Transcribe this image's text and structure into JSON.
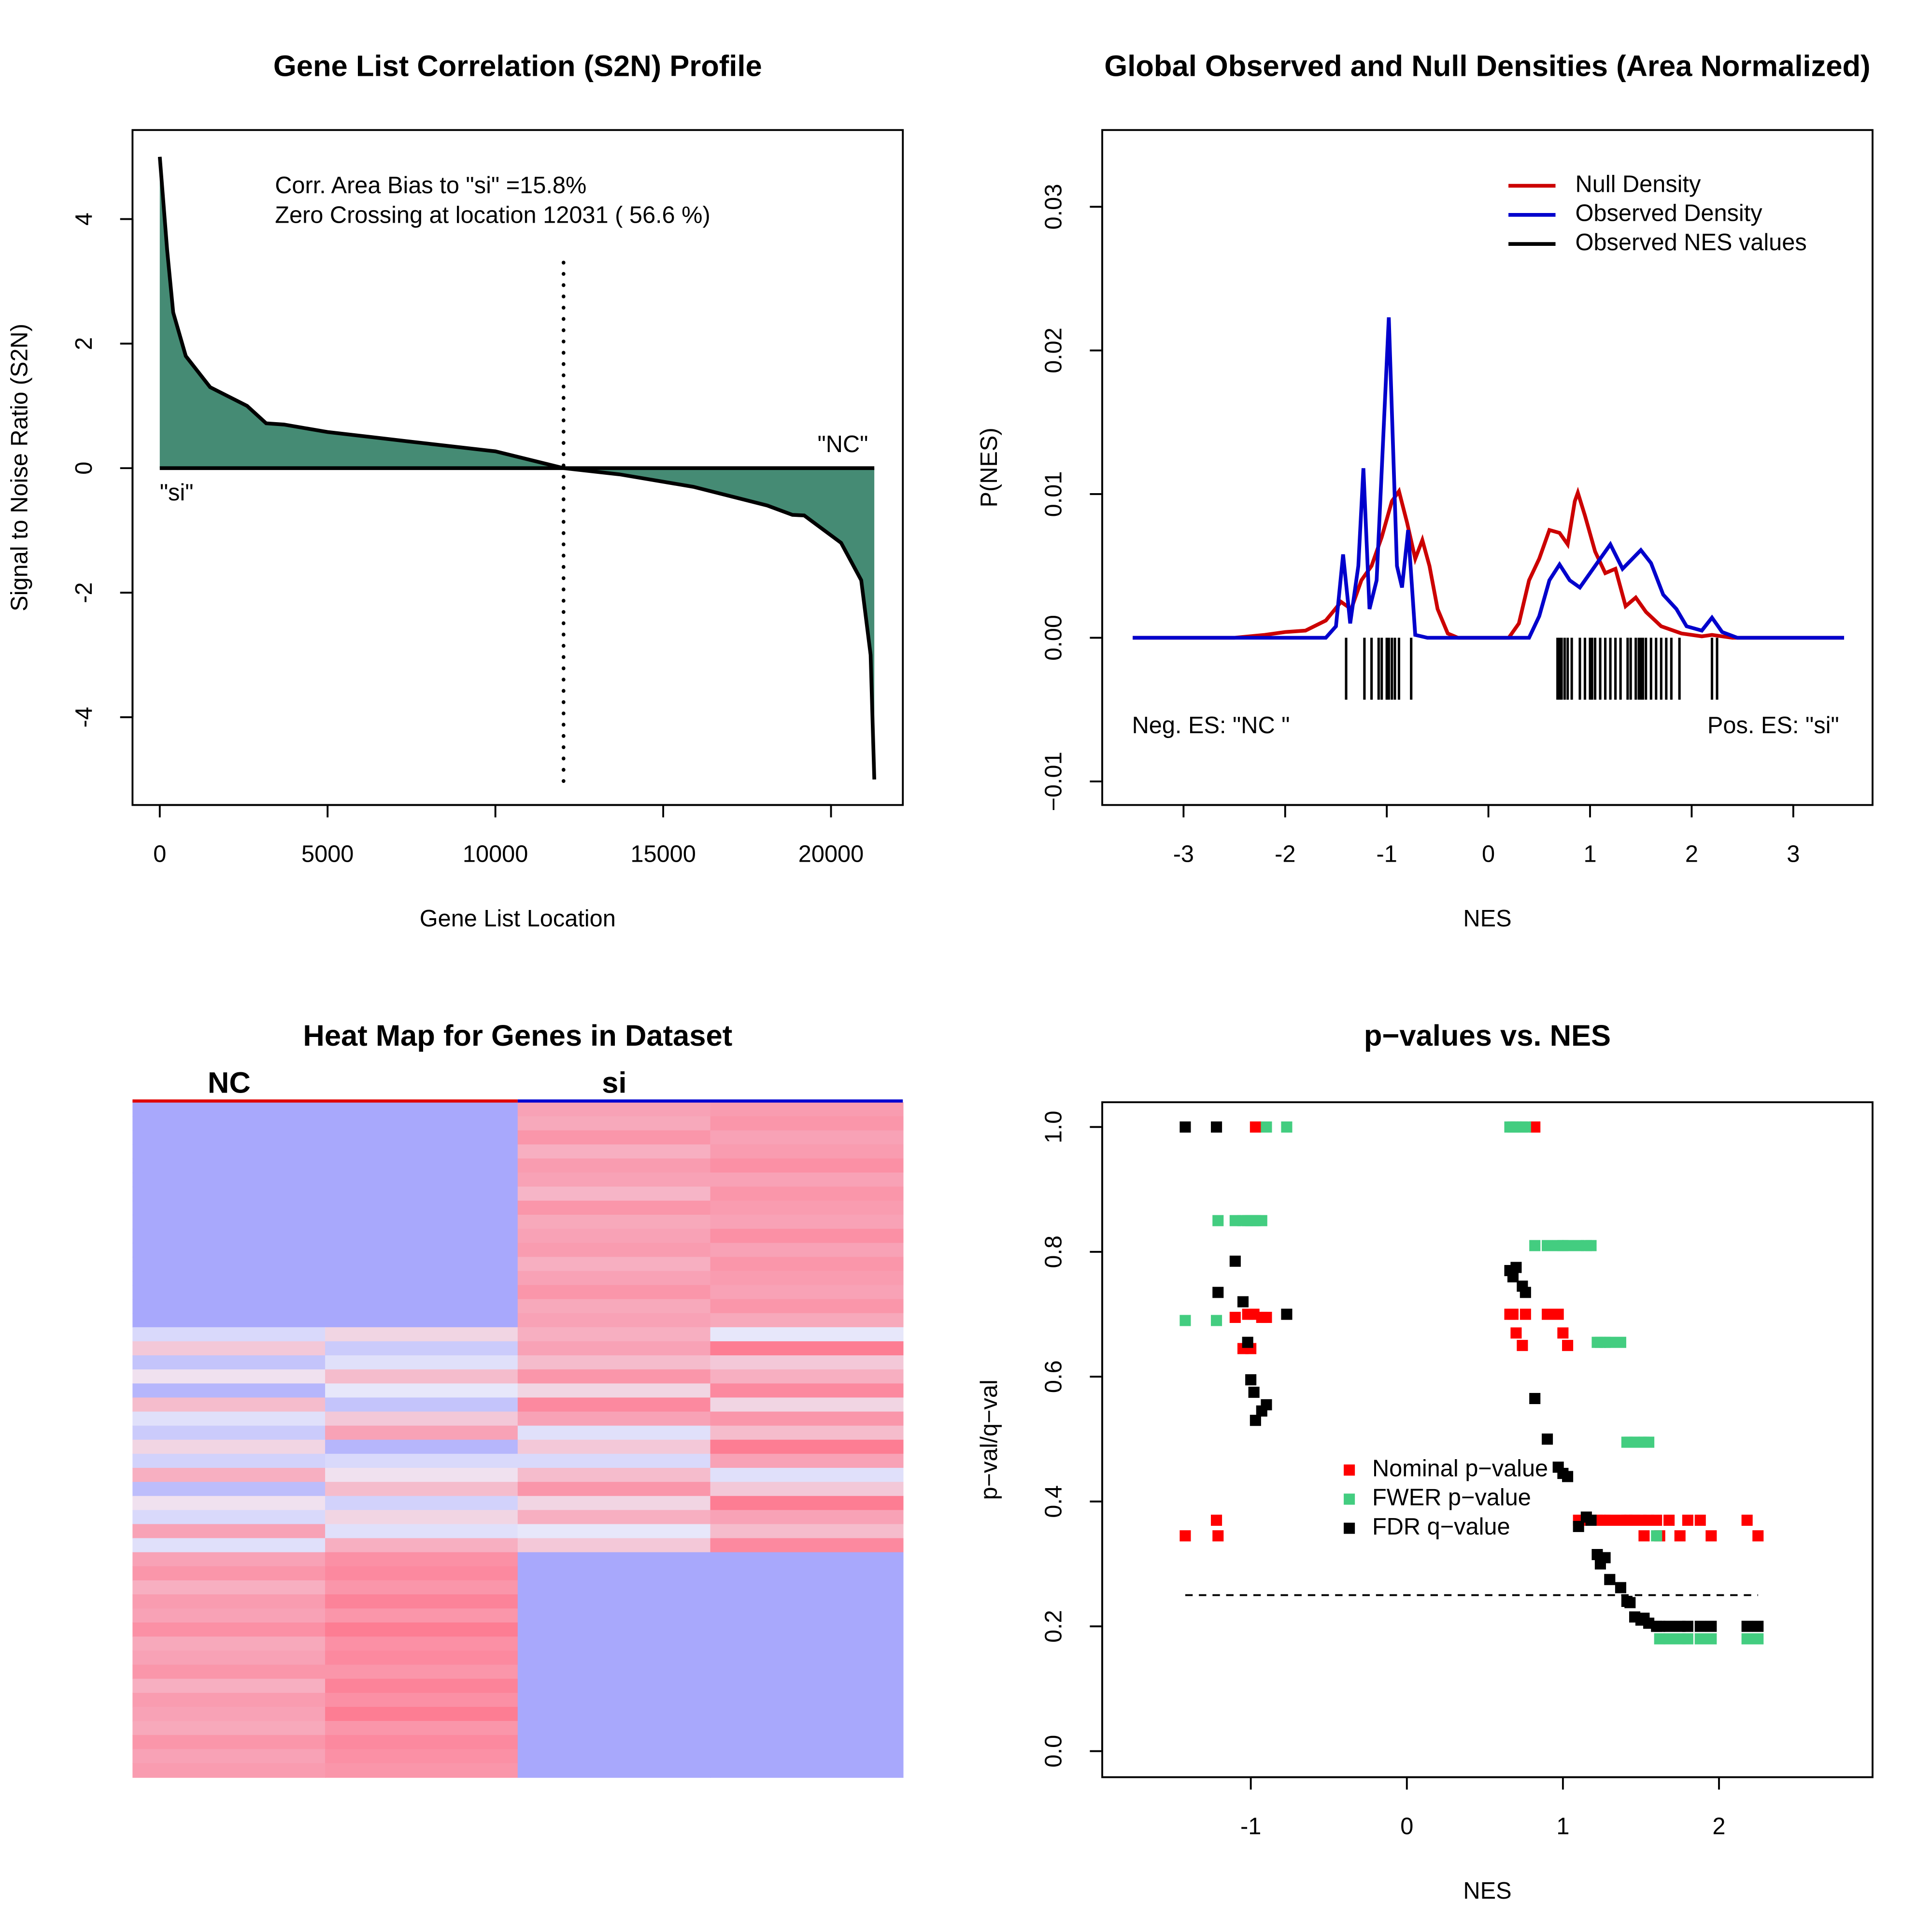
{
  "chart_data": [
    {
      "type": "area",
      "title": "Gene List Correlation (S2N) Profile",
      "x_label": "Gene List Location",
      "y_label": "Signal to Noise Ratio (S2N)",
      "x": [
        0,
        220,
        400,
        775,
        1500,
        2600,
        3170,
        3700,
        5000,
        7400,
        10000,
        12031,
        13700,
        15900,
        18100,
        18850,
        19200,
        20300,
        20900,
        21180,
        21290
      ],
      "values": [
        5.0,
        3.5,
        2.5,
        1.8,
        1.3,
        1.0,
        0.72,
        0.7,
        0.58,
        0.43,
        0.27,
        0,
        -0.1,
        -0.3,
        -0.6,
        -0.75,
        -0.76,
        -1.2,
        -1.8,
        -3,
        -5
      ],
      "color": "#458b74",
      "zero_crossing": 12031,
      "annotations": [
        "Corr. Area Bias to \"si\" =15.8%",
        "Zero Crossing at location  12031  ( 56.6  %)",
        "\"NC\"",
        "\"si\""
      ],
      "xlim": [
        -812,
        22140
      ],
      "xticks": [
        0,
        5000,
        10000,
        15000,
        20000
      ],
      "ylim": [
        -5.41,
        5.43
      ],
      "yticks": [
        -4,
        -2,
        0,
        2,
        4
      ]
    },
    {
      "type": "line",
      "title": "Global Observed and Null Densities (Area Normalized)",
      "x_label": "NES",
      "y_label": "P(NES)",
      "series": [
        {
          "name": "Null Density",
          "color": "#cc0000",
          "x": [
            -3.5,
            -2.5,
            -2.2,
            -2,
            -1.8,
            -1.6,
            -1.45,
            -1.35,
            -1.25,
            -1.15,
            -1.05,
            -0.95,
            -0.88,
            -0.8,
            -0.72,
            -0.65,
            -0.58,
            -0.5,
            -0.4,
            -0.3,
            0.2,
            0.3,
            0.4,
            0.5,
            0.6,
            0.7,
            0.78,
            0.85,
            0.88,
            0.95,
            1.05,
            1.15,
            1.25,
            1.35,
            1.45,
            1.55,
            1.7,
            1.9,
            2.1,
            2.2,
            2.4,
            3.5
          ],
          "values": [
            0,
            0,
            0.0002,
            0.0004,
            0.0005,
            0.0012,
            0.0025,
            0.002,
            0.004,
            0.005,
            0.007,
            0.0095,
            0.0102,
            0.008,
            0.0055,
            0.0068,
            0.005,
            0.002,
            0.0003,
            0,
            0,
            0.001,
            0.004,
            0.0055,
            0.0075,
            0.0073,
            0.0065,
            0.0095,
            0.0101,
            0.0085,
            0.006,
            0.0045,
            0.0048,
            0.0022,
            0.0028,
            0.0018,
            0.0008,
            0.0003,
            0.0001,
            0.0002,
            0,
            0
          ]
        },
        {
          "name": "Observed Density",
          "color": "#0000cc",
          "x": [
            -3.5,
            -1.6,
            -1.5,
            -1.43,
            -1.36,
            -1.28,
            -1.23,
            -1.17,
            -1.1,
            -0.98,
            -0.9,
            -0.85,
            -0.79,
            -0.72,
            -0.6,
            0.4,
            0.5,
            0.6,
            0.7,
            0.8,
            0.9,
            1.05,
            1.2,
            1.32,
            1.5,
            1.6,
            1.72,
            1.85,
            1.95,
            2.1,
            2.2,
            2.3,
            2.45,
            3.5
          ],
          "values": [
            0,
            0,
            0.0008,
            0.0058,
            0.001,
            0.005,
            0.0118,
            0.002,
            0.004,
            0.0223,
            0.005,
            0.0035,
            0.0075,
            0.0002,
            0,
            0,
            0.0015,
            0.004,
            0.0051,
            0.004,
            0.0035,
            0.005,
            0.0065,
            0.0048,
            0.0061,
            0.0052,
            0.003,
            0.002,
            0.0008,
            0.0005,
            0.0014,
            0.0004,
            0,
            0
          ]
        },
        {
          "name": "Observed NES values",
          "color": "#000000",
          "style": "rug",
          "values": [
            -1.4,
            -1.22,
            -1.15,
            -1.08,
            -1.05,
            -1.0,
            -0.98,
            -0.95,
            -0.92,
            -0.88,
            -0.76,
            0.68,
            0.7,
            0.72,
            0.75,
            0.78,
            0.82,
            0.9,
            0.95,
            1.0,
            1.02,
            1.05,
            1.1,
            1.15,
            1.2,
            1.25,
            1.3,
            1.37,
            1.4,
            1.45,
            1.48,
            1.5,
            1.52,
            1.55,
            1.6,
            1.65,
            1.7,
            1.75,
            1.8,
            1.88,
            2.2,
            2.25
          ]
        }
      ],
      "legend": "topright",
      "annotations": [
        "Neg. ES: \"NC \"",
        "Pos. ES: \"si\""
      ],
      "xlim": [
        -3.8,
        3.78
      ],
      "xticks": [
        -3,
        -2,
        -1,
        0,
        1,
        2,
        3
      ],
      "ylim": [
        -0.01164,
        0.03534
      ],
      "yticks": [
        {
          "value": -0.01,
          "label": "−0.01"
        },
        {
          "value": 0,
          "label": "0.00"
        },
        0.01,
        0.02,
        0.03
      ]
    },
    {
      "type": "heatmap",
      "title": "Heat Map for Genes in Dataset",
      "groups": [
        {
          "name": "NC",
          "color": "#e00000",
          "columns": 2
        },
        {
          "name": "si",
          "color": "#0000d0",
          "columns": 2
        }
      ],
      "zlim": [
        -1,
        1
      ],
      "colors": [
        "#a8a8fc",
        "#eeeefa",
        "#ff7088"
      ],
      "rows": [
        [
          -1,
          -1,
          0.6,
          0.65
        ],
        [
          -1,
          -1,
          0.55,
          0.7
        ],
        [
          -1,
          -1,
          0.7,
          0.6
        ],
        [
          -1,
          -1,
          0.5,
          0.65
        ],
        [
          -1,
          -1,
          0.65,
          0.75
        ],
        [
          -1,
          -1,
          0.6,
          0.6
        ],
        [
          -1,
          -1,
          0.45,
          0.7
        ],
        [
          -1,
          -1,
          0.7,
          0.65
        ],
        [
          -1,
          -1,
          0.55,
          0.6
        ],
        [
          -1,
          -1,
          0.6,
          0.75
        ],
        [
          -1,
          -1,
          0.65,
          0.6
        ],
        [
          -1,
          -1,
          0.5,
          0.7
        ],
        [
          -1,
          -1,
          0.6,
          0.65
        ],
        [
          -1,
          -1,
          0.7,
          0.6
        ],
        [
          -1,
          -1,
          0.55,
          0.7
        ],
        [
          -1,
          -1,
          0.6,
          0.55
        ],
        [
          -0.3,
          0.2,
          0.5,
          -0.1
        ],
        [
          0.3,
          -0.5,
          0.6,
          0.9
        ],
        [
          -0.6,
          -0.2,
          0.4,
          0.3
        ],
        [
          0.1,
          0.4,
          0.7,
          0.5
        ],
        [
          -0.8,
          -0.1,
          0.2,
          0.8
        ],
        [
          0.4,
          -0.6,
          0.8,
          0.2
        ],
        [
          -0.2,
          0.3,
          0.6,
          0.7
        ],
        [
          -0.5,
          0.6,
          -0.2,
          0.4
        ],
        [
          0.2,
          -0.8,
          0.3,
          0.9
        ],
        [
          -0.4,
          -0.3,
          -0.3,
          0.6
        ],
        [
          0.5,
          0.1,
          0.4,
          -0.2
        ],
        [
          -0.7,
          0.4,
          0.7,
          0.3
        ],
        [
          0.1,
          -0.4,
          0.2,
          0.9
        ],
        [
          -0.3,
          0.2,
          0.5,
          0.6
        ],
        [
          0.6,
          -0.2,
          -0.1,
          0.4
        ],
        [
          -0.2,
          0.5,
          0.3,
          0.8
        ],
        [
          0.6,
          0.75,
          -1,
          -1
        ],
        [
          0.7,
          0.8,
          -1,
          -1
        ],
        [
          0.5,
          0.7,
          -1,
          -1
        ],
        [
          0.65,
          0.85,
          -1,
          -1
        ],
        [
          0.6,
          0.7,
          -1,
          -1
        ],
        [
          0.75,
          0.9,
          -1,
          -1
        ],
        [
          0.55,
          0.75,
          -1,
          -1
        ],
        [
          0.6,
          0.8,
          -1,
          -1
        ],
        [
          0.7,
          0.7,
          -1,
          -1
        ],
        [
          0.5,
          0.85,
          -1,
          -1
        ],
        [
          0.65,
          0.75,
          -1,
          -1
        ],
        [
          0.6,
          0.9,
          -1,
          -1
        ],
        [
          0.55,
          0.7,
          -1,
          -1
        ],
        [
          0.7,
          0.8,
          -1,
          -1
        ],
        [
          0.6,
          0.75,
          -1,
          -1
        ],
        [
          0.65,
          0.7,
          -1,
          -1
        ]
      ]
    },
    {
      "type": "scatter",
      "title": "p−values vs. NES",
      "x_label": "NES",
      "y_label": "p−val/q−val",
      "x": [
        -1.42,
        -1.22,
        -1.21,
        -1.1,
        -1.05,
        -1.02,
        -1.0,
        -0.98,
        -0.97,
        -0.93,
        -0.9,
        -0.77,
        0.66,
        0.68,
        0.7,
        0.74,
        0.76,
        0.82,
        0.9,
        0.97,
        1.0,
        1.03,
        1.1,
        1.15,
        1.18,
        1.22,
        1.24,
        1.27,
        1.3,
        1.37,
        1.41,
        1.43,
        1.46,
        1.5,
        1.52,
        1.55,
        1.6,
        1.62,
        1.68,
        1.75,
        1.8,
        1.88,
        1.95,
        2.18,
        2.25
      ],
      "series": [
        {
          "name": "Nominal p−value",
          "color": "#ff0000",
          "values": [
            0.345,
            0.37,
            0.345,
            0.695,
            0.645,
            0.7,
            0.645,
            0.7,
            1.0,
            0.695,
            0.695,
            0.7,
            0.7,
            0.7,
            0.67,
            0.65,
            0.7,
            1.0,
            0.7,
            0.7,
            0.67,
            0.65,
            0.37,
            0.37,
            0.37,
            0.37,
            0.37,
            0.37,
            0.37,
            0.37,
            0.37,
            0.37,
            0.37,
            0.37,
            0.345,
            0.37,
            0.37,
            0.345,
            0.37,
            0.345,
            0.37,
            0.37,
            0.345,
            0.37,
            0.345
          ]
        },
        {
          "name": "FWER p−value",
          "color": "#43cd80",
          "values": [
            0.69,
            0.69,
            0.85,
            0.85,
            0.85,
            0.85,
            0.85,
            0.85,
            0.85,
            0.85,
            1.0,
            1.0,
            1.0,
            1.0,
            1.0,
            1.0,
            1.0,
            0.81,
            0.81,
            0.81,
            0.81,
            0.81,
            0.81,
            0.81,
            0.81,
            0.655,
            0.655,
            0.655,
            0.655,
            0.655,
            0.495,
            0.495,
            0.495,
            0.495,
            0.495,
            0.495,
            0.345,
            0.18,
            0.18,
            0.18,
            0.18,
            0.18,
            0.18,
            0.18,
            0.18
          ]
        },
        {
          "name": "FDR q−value",
          "color": "#000000",
          "values": [
            1.0,
            1.0,
            0.735,
            0.785,
            0.72,
            0.655,
            0.595,
            0.575,
            0.53,
            0.545,
            0.555,
            0.7,
            0.77,
            0.76,
            0.775,
            0.745,
            0.735,
            0.565,
            0.5,
            0.455,
            0.445,
            0.44,
            0.36,
            0.375,
            0.37,
            0.315,
            0.3,
            0.31,
            0.275,
            0.262,
            0.24,
            0.238,
            0.215,
            0.21,
            0.213,
            0.205,
            0.2,
            0.2,
            0.2,
            0.2,
            0.2,
            0.2,
            0.2,
            0.2,
            0.2
          ]
        }
      ],
      "threshold": 0.25,
      "legend": "center",
      "xlim": [
        -1.952,
        2.984
      ],
      "xticks": [
        -1,
        0,
        1,
        2
      ],
      "ylim": [
        -0.0417,
        1.0397
      ],
      "yticks": [
        {
          "value": 0,
          "label": "0.0"
        },
        0.2,
        0.4,
        0.6,
        0.8,
        {
          "value": 1,
          "label": "1.0"
        }
      ]
    }
  ]
}
